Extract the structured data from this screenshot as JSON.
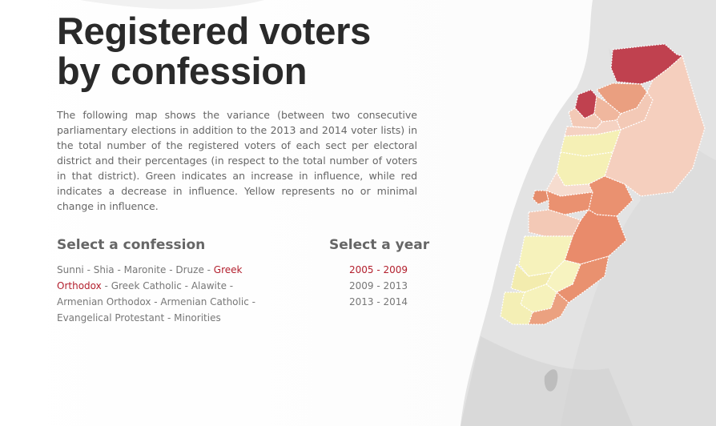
{
  "title_line1": "Registered voters",
  "title_line2": "by confession",
  "intro": "The following map shows the variance (between two consecutive parliamentary elections in addition to the 2013 and 2014 voter lists) in the total number of the registered voters of each sect per electoral district and their percentages (in respect to the total number of voters in that district). Green indicates an increase in influence, while red indicates a decrease in influence. Yellow represents no or minimal change in influence.",
  "confession_heading": "Select a confession",
  "year_heading": "Select a year",
  "separator": " - ",
  "confessions": [
    {
      "label": "Sunni",
      "active": false
    },
    {
      "label": "Shia",
      "active": false
    },
    {
      "label": "Maronite",
      "active": false
    },
    {
      "label": "Druze",
      "active": false
    },
    {
      "label": "Greek Orthodox",
      "active": true
    },
    {
      "label": "Greek Catholic",
      "active": false
    },
    {
      "label": "Alawite",
      "active": false
    },
    {
      "label": "Armenian Orthodox",
      "active": false
    },
    {
      "label": "Armenian Catholic",
      "active": false
    },
    {
      "label": "Evangelical Protestant",
      "active": false
    },
    {
      "label": "Minorities",
      "active": false
    }
  ],
  "years": [
    {
      "label": "2005 - 2009",
      "active": true
    },
    {
      "label": "2009 - 2013",
      "active": false
    },
    {
      "label": "2013 - 2014",
      "active": false
    }
  ],
  "colors": {
    "accent": "#b3202e",
    "strong_decrease": "#c0414f",
    "decrease": "#ea9170",
    "light_decrease": "#f3c5b2",
    "no_change": "#f5f1b3",
    "light_change": "#f2e9a8"
  },
  "map_districts": [
    {
      "id": "akkar",
      "color": "#c0414f"
    },
    {
      "id": "tripoli",
      "color": "#c0414f"
    },
    {
      "id": "minieh-dinnieh",
      "color": "#ea9f80"
    },
    {
      "id": "zgharta",
      "color": "#f0b79e"
    },
    {
      "id": "koura",
      "color": "#f3c9b6"
    },
    {
      "id": "batroun",
      "color": "#f5d2c2"
    },
    {
      "id": "bsharri",
      "color": "#f3c9b6"
    },
    {
      "id": "baalbek-hermel",
      "color": "#f5cfbe"
    },
    {
      "id": "jbeil",
      "color": "#f5f0b5"
    },
    {
      "id": "kesrouan",
      "color": "#f5f0b5"
    },
    {
      "id": "metn",
      "color": "#f6dccf"
    },
    {
      "id": "beirut",
      "color": "#e58d6c"
    },
    {
      "id": "baabda",
      "color": "#ea9170"
    },
    {
      "id": "zahle",
      "color": "#ea9170"
    },
    {
      "id": "aley",
      "color": "#f3c9b6"
    },
    {
      "id": "west-bekaa",
      "color": "#e98b6b"
    },
    {
      "id": "chouf",
      "color": "#f6f2bb"
    },
    {
      "id": "jezzine",
      "color": "#f7f3c0"
    },
    {
      "id": "saida",
      "color": "#f3ecae"
    },
    {
      "id": "nabatieh",
      "color": "#f6f2bb"
    },
    {
      "id": "marjayoun",
      "color": "#e9916f"
    },
    {
      "id": "tyre",
      "color": "#f4efb5"
    },
    {
      "id": "bint-jbeil",
      "color": "#eba180"
    }
  ]
}
